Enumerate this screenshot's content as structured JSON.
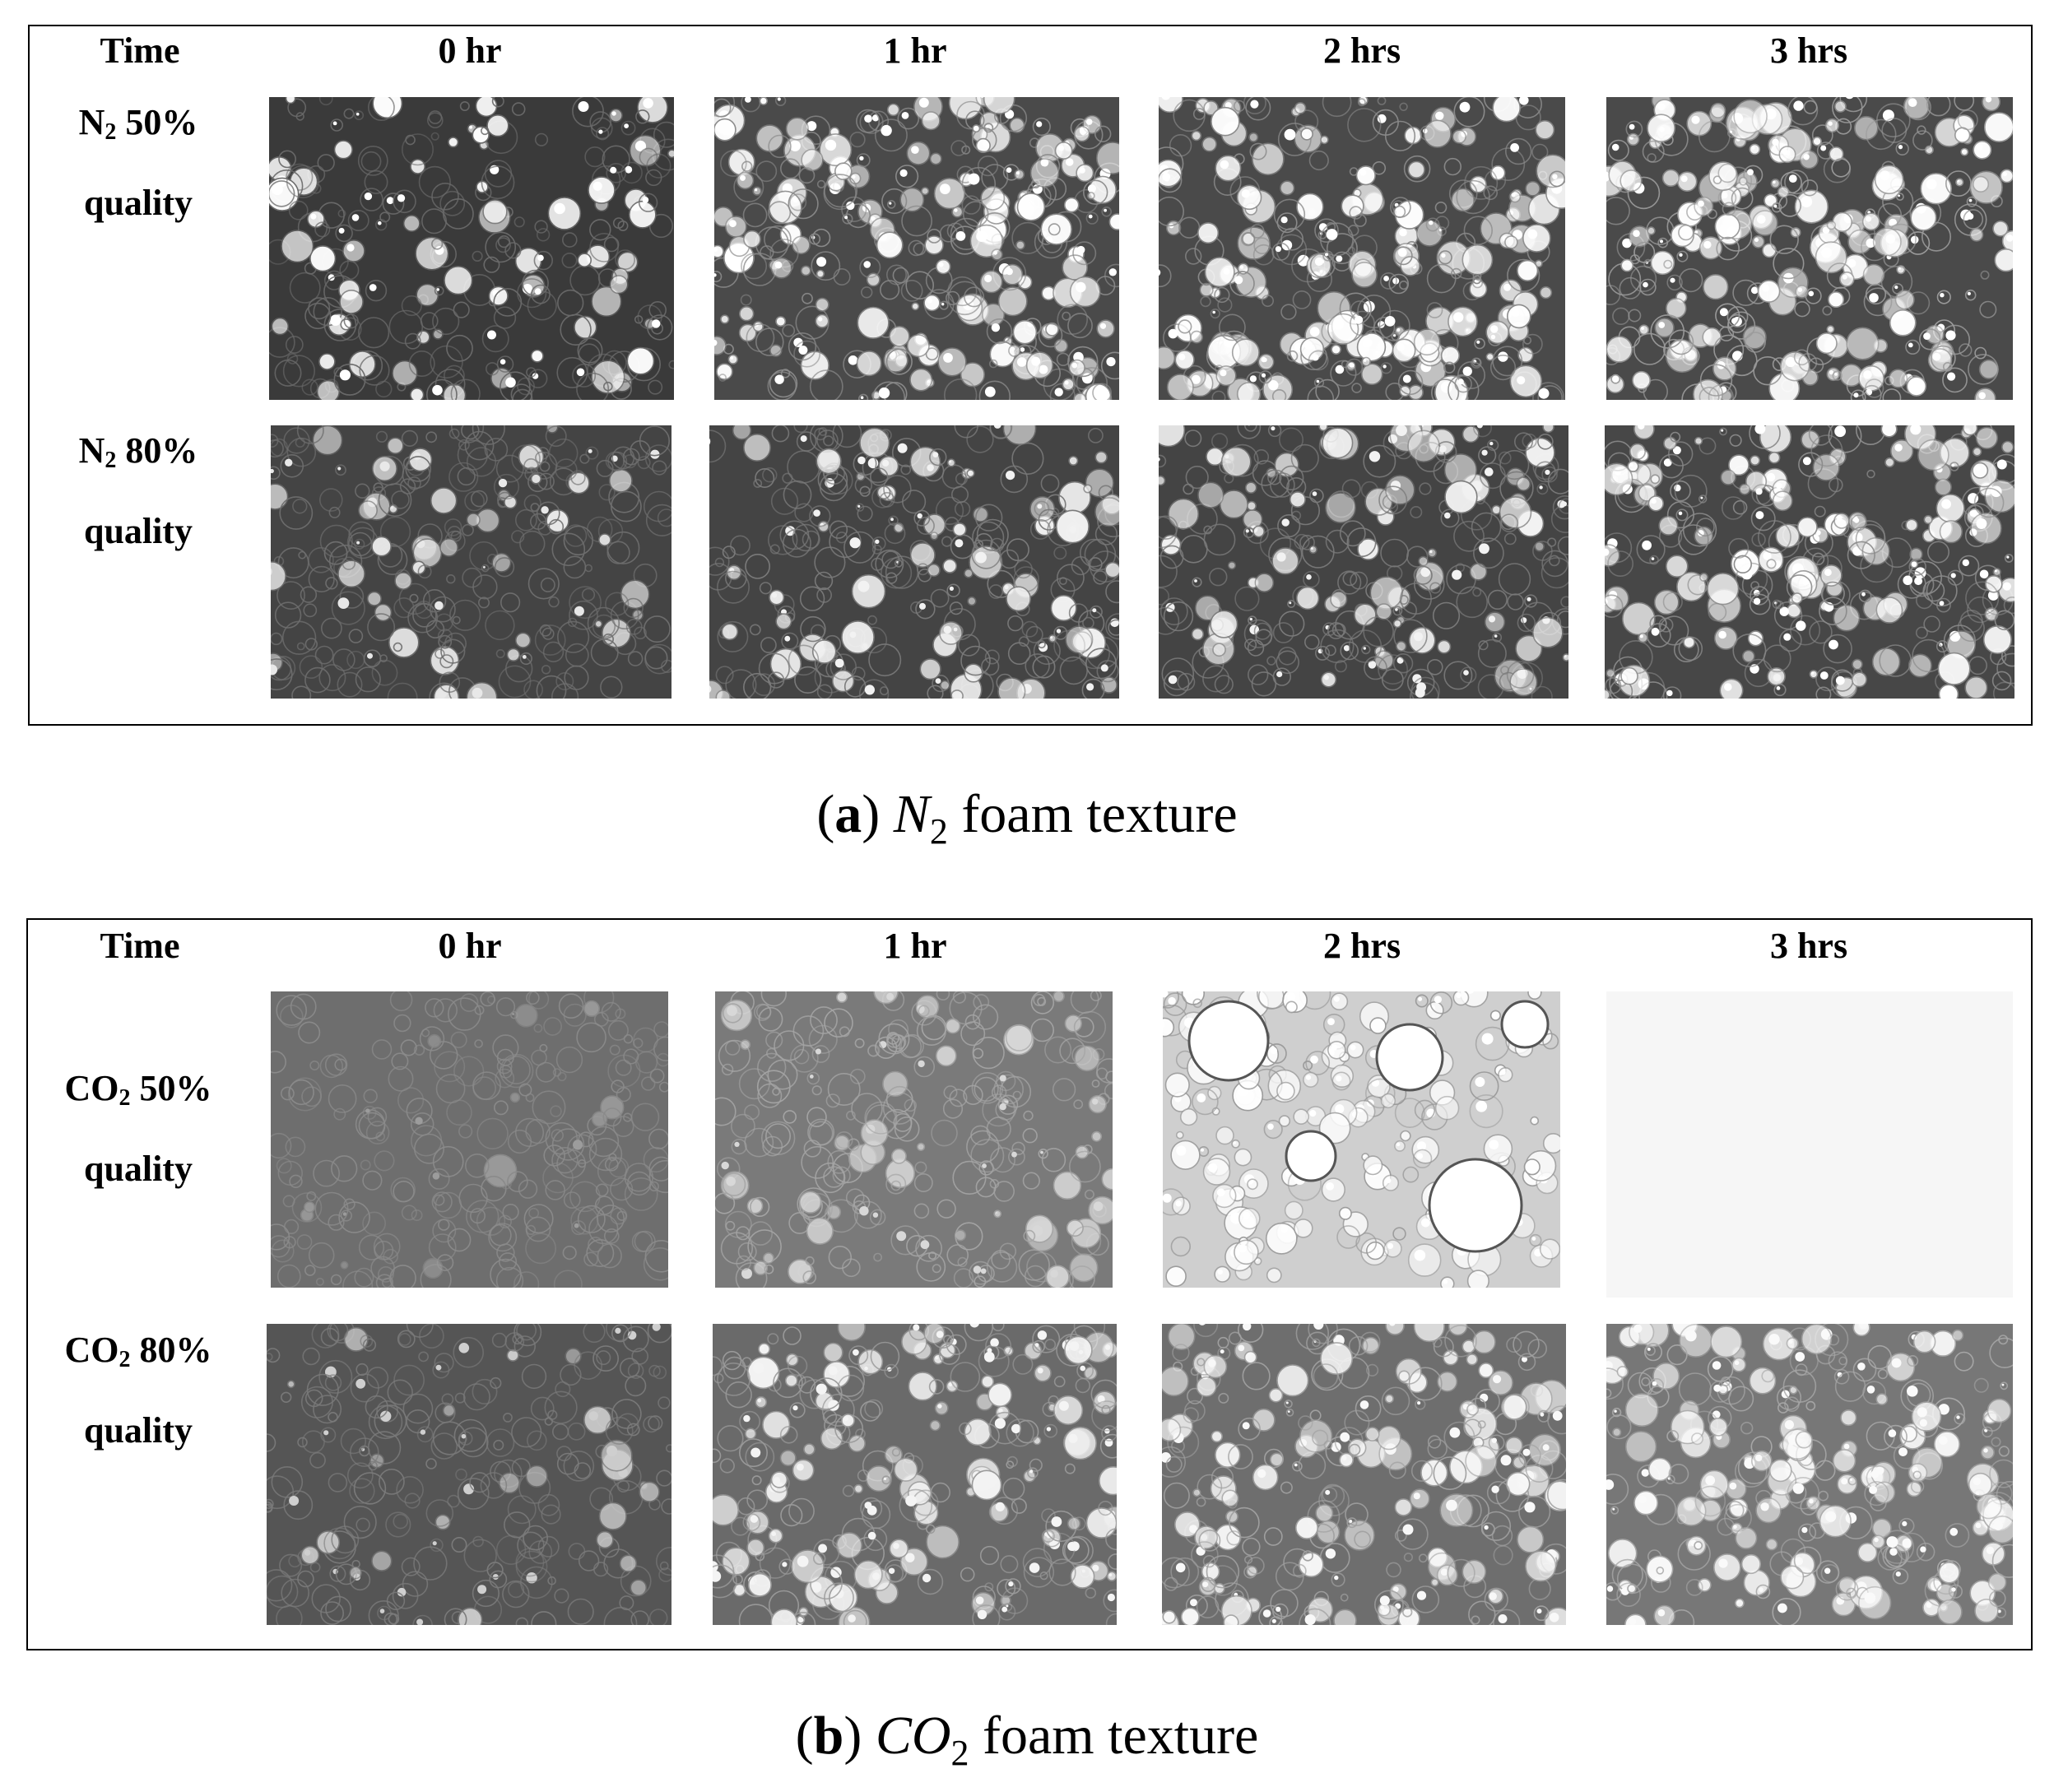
{
  "figure_a": {
    "headers": {
      "time": "Time",
      "t0": "0 hr",
      "t1": "1 hr",
      "t2": "2 hrs",
      "t3": "3 hrs"
    },
    "rows": [
      {
        "gas": "N",
        "sub": "2",
        "pct": " 50%",
        "quality": "quality"
      },
      {
        "gas": "N",
        "sub": "2",
        "pct": " 80%",
        "quality": "quality"
      }
    ],
    "caption": {
      "letter": "a",
      "gas": "N",
      "sub": "2",
      "rest": " foam texture"
    }
  },
  "figure_b": {
    "headers": {
      "time": "Time",
      "t0": "0 hr",
      "t1": "1 hr",
      "t2": "2 hrs",
      "t3": "3 hrs"
    },
    "rows": [
      {
        "gas": "CO",
        "sub": "2",
        "pct": " 50%",
        "quality": "quality"
      },
      {
        "gas": "CO",
        "sub": "2",
        "pct": " 80%",
        "quality": "quality"
      }
    ],
    "caption": {
      "letter": "b",
      "gas": "CO",
      "sub": "2",
      "rest": " foam texture"
    }
  },
  "images": [
    {
      "panel": "a",
      "row": 0,
      "col": 0,
      "tone": "#3a3a3a",
      "bubble": "#6a6a6a",
      "highlight": "#ffffff",
      "density": 0.55,
      "whiteness": 0.25
    },
    {
      "panel": "a",
      "row": 0,
      "col": 1,
      "tone": "#4a4a4a",
      "bubble": "#8a8a8a",
      "highlight": "#ffffff",
      "density": 0.7,
      "whiteness": 0.45
    },
    {
      "panel": "a",
      "row": 0,
      "col": 2,
      "tone": "#4a4a4a",
      "bubble": "#8a8a8a",
      "highlight": "#ffffff",
      "density": 0.7,
      "whiteness": 0.45
    },
    {
      "panel": "a",
      "row": 0,
      "col": 3,
      "tone": "#4a4a4a",
      "bubble": "#9a9a9a",
      "highlight": "#ffffff",
      "density": 0.7,
      "whiteness": 0.5
    },
    {
      "panel": "a",
      "row": 1,
      "col": 0,
      "tone": "#444444",
      "bubble": "#6e6e6e",
      "highlight": "#e8e8e8",
      "density": 0.7,
      "whiteness": 0.15
    },
    {
      "panel": "a",
      "row": 1,
      "col": 1,
      "tone": "#444444",
      "bubble": "#7a7a7a",
      "highlight": "#f2f2f2",
      "density": 0.7,
      "whiteness": 0.25
    },
    {
      "panel": "a",
      "row": 1,
      "col": 2,
      "tone": "#444444",
      "bubble": "#7a7a7a",
      "highlight": "#f2f2f2",
      "density": 0.7,
      "whiteness": 0.3
    },
    {
      "panel": "a",
      "row": 1,
      "col": 3,
      "tone": "#474747",
      "bubble": "#8a8a8a",
      "highlight": "#ffffff",
      "density": 0.7,
      "whiteness": 0.4
    },
    {
      "panel": "b",
      "row": 0,
      "col": 0,
      "tone": "#6e6e6e",
      "bubble": "#8a8a8a",
      "highlight": "#9c9c9c",
      "density": 0.6,
      "whiteness": 0.05
    },
    {
      "panel": "b",
      "row": 0,
      "col": 1,
      "tone": "#7a7a7a",
      "bubble": "#a4a4a4",
      "highlight": "#d8d8d8",
      "density": 0.6,
      "whiteness": 0.2
    },
    {
      "panel": "b",
      "row": 0,
      "col": 2,
      "tone": "#cfcfcf",
      "bubble": "#9a9a9a",
      "highlight": "#ffffff",
      "density": 0.45,
      "whiteness": 0.7
    },
    {
      "panel": "b",
      "row": 0,
      "col": 3,
      "tone": "#f6f6f6",
      "bubble": "#f6f6f6",
      "highlight": "#f6f6f6",
      "density": 0.0,
      "whiteness": 0.0
    },
    {
      "panel": "b",
      "row": 1,
      "col": 0,
      "tone": "#555555",
      "bubble": "#7a7a7a",
      "highlight": "#cfcfcf",
      "density": 0.55,
      "whiteness": 0.15
    },
    {
      "panel": "b",
      "row": 1,
      "col": 1,
      "tone": "#6a6a6a",
      "bubble": "#9a9a9a",
      "highlight": "#f4f4f4",
      "density": 0.6,
      "whiteness": 0.35
    },
    {
      "panel": "b",
      "row": 1,
      "col": 2,
      "tone": "#6e6e6e",
      "bubble": "#a0a0a0",
      "highlight": "#f8f8f8",
      "density": 0.6,
      "whiteness": 0.4
    },
    {
      "panel": "b",
      "row": 1,
      "col": 3,
      "tone": "#777777",
      "bubble": "#a8a8a8",
      "highlight": "#fafafa",
      "density": 0.6,
      "whiteness": 0.45
    }
  ]
}
